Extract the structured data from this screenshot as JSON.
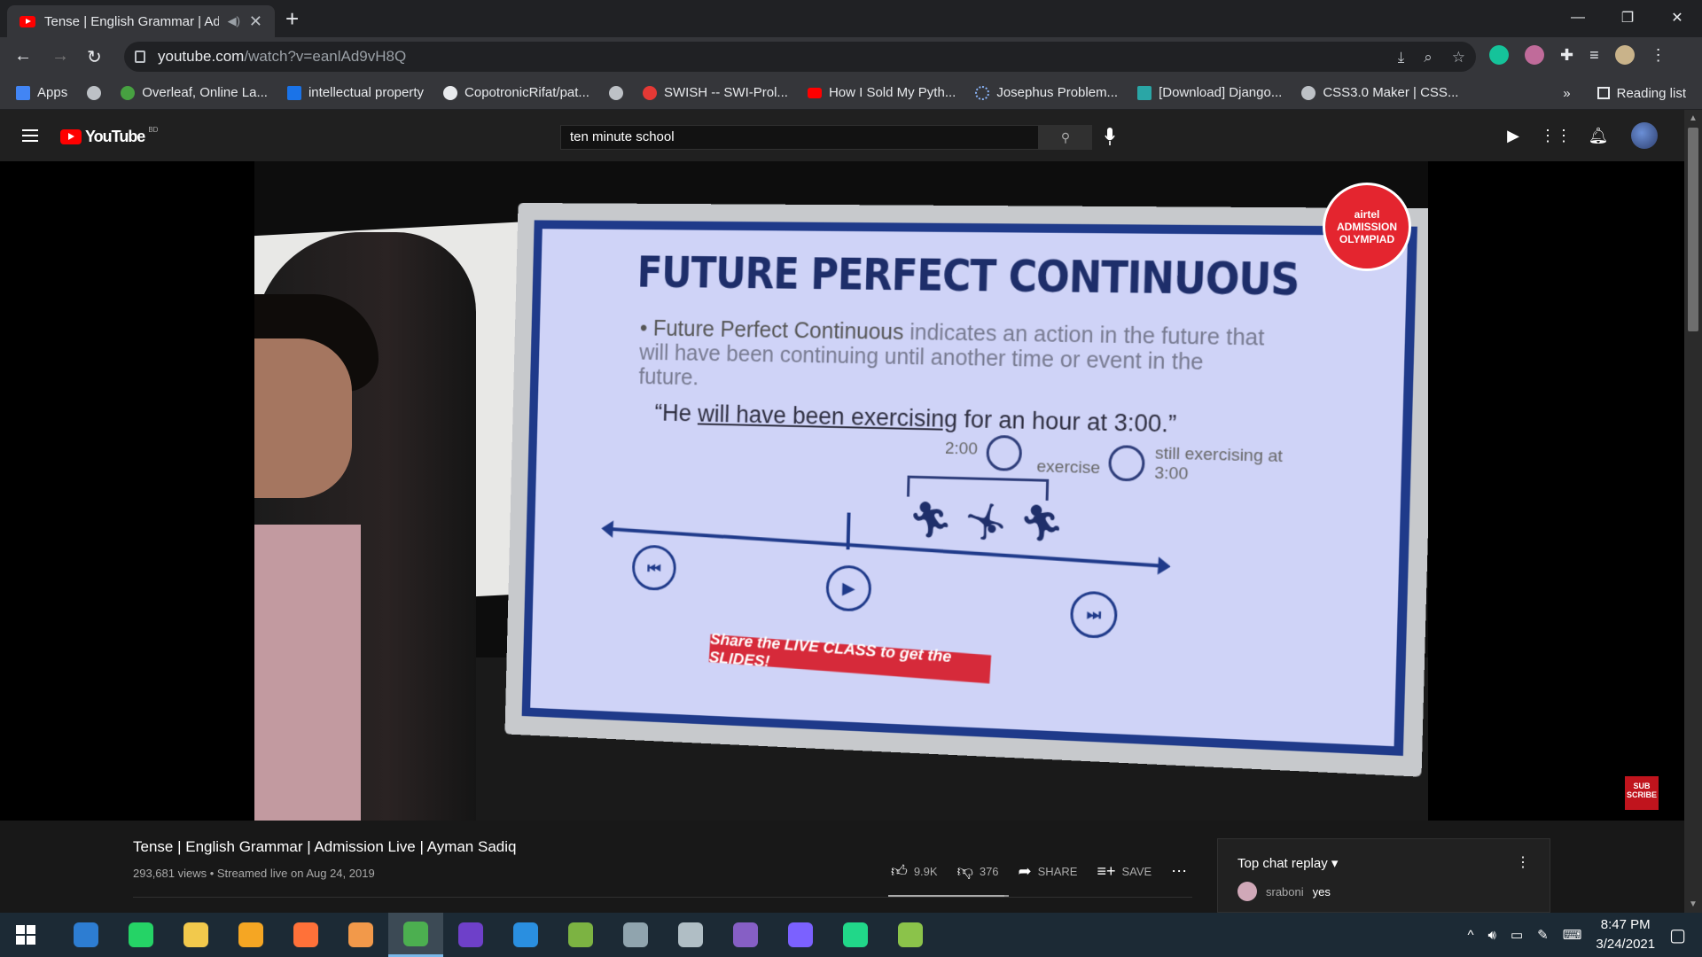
{
  "browser": {
    "tab_title": "Tense | English Grammar | Ad",
    "url_main": "youtube.com",
    "url_path": "/watch?v=eanlAd9vH8Q",
    "window_controls": [
      "—",
      "❐",
      "✕"
    ]
  },
  "bookmarks": {
    "items": [
      {
        "label": "Apps",
        "icon": "apps-grid-icon",
        "color": "#4285f4"
      },
      {
        "label": "",
        "icon": "globe-icon",
        "color": "#bdc1c6"
      },
      {
        "label": "Overleaf, Online La...",
        "icon": "overleaf-icon",
        "color": "#47a141"
      },
      {
        "label": "intellectual property",
        "icon": "scribd-icon",
        "color": "#1a73e8"
      },
      {
        "label": "CopotronicRifat/pat...",
        "icon": "github-icon",
        "color": "#e8eaed"
      },
      {
        "label": "",
        "icon": "globe-icon",
        "color": "#bdc1c6"
      },
      {
        "label": "SWISH -- SWI-Prol...",
        "icon": "swish-icon",
        "color": "#e53935"
      },
      {
        "label": "How I Sold My Pyth...",
        "icon": "youtube-icon",
        "color": "#ff0000"
      },
      {
        "label": "Josephus Problem...",
        "icon": "loading-icon",
        "color": "#8ab4f8"
      },
      {
        "label": "[Download] Django...",
        "icon": "django-icon",
        "color": "#2aa6a6"
      },
      {
        "label": "CSS3.0 Maker | CSS...",
        "icon": "globe-icon",
        "color": "#bdc1c6"
      }
    ],
    "overflow": "»",
    "reading_list": "Reading list"
  },
  "youtube": {
    "logo_text": "YouTube",
    "country_code": "BD",
    "search_value": "ten minute school"
  },
  "slide": {
    "title": "FUTURE PERFECT CONTINUOUS",
    "bullet_lead": "• Future Perfect Continuous",
    "bullet_rest": " indicates an action in the future that will have been continuing until another time or event in the future.",
    "quote_start": "“He ",
    "quote_underlined": "will have been exercising",
    "quote_end": " for an hour at 3:00.”",
    "time_start": "2:00",
    "exercise": "exercise",
    "still": "still exercising at 3:00",
    "banner": "Share the LIVE CLASS to get the SLIDES!",
    "badge_brand": "airtel",
    "badge_line1": "ADMISSION",
    "badge_line2": "OLYMPIAD"
  },
  "subscribe": "SUB SCRIBE",
  "video": {
    "title": "Tense | English Grammar | Admission Live | Ayman Sadiq",
    "meta": "293,681 views • Streamed live on Aug 24, 2019",
    "likes": "9.9K",
    "dislikes": "376",
    "share": "SHARE",
    "save": "SAVE",
    "like_ratio": 0.96
  },
  "chat": {
    "header": "Top chat replay",
    "messages": [
      {
        "author": "sraboni",
        "text": "yes"
      }
    ]
  },
  "taskbar": {
    "time": "8:47 PM",
    "date": "3/24/2021",
    "apps": [
      {
        "name": "taskbar-app-1",
        "color": "#2d7dd2"
      },
      {
        "name": "taskbar-whatsapp",
        "color": "#25d366"
      },
      {
        "name": "taskbar-file-explorer",
        "color": "#f2c94c"
      },
      {
        "name": "taskbar-app-4",
        "color": "#f5a623"
      },
      {
        "name": "taskbar-firefox",
        "color": "#ff7139"
      },
      {
        "name": "taskbar-app-6",
        "color": "#f2994a"
      },
      {
        "name": "taskbar-chrome",
        "color": "#4caf50"
      },
      {
        "name": "taskbar-github-desktop",
        "color": "#6e40c9"
      },
      {
        "name": "taskbar-vscode",
        "color": "#2a8fe0"
      },
      {
        "name": "taskbar-app-10",
        "color": "#7cb342"
      },
      {
        "name": "taskbar-app-11",
        "color": "#90a4ae"
      },
      {
        "name": "taskbar-app-12",
        "color": "#b0bec5"
      },
      {
        "name": "taskbar-visual-studio",
        "color": "#865fc5"
      },
      {
        "name": "taskbar-messenger",
        "color": "#7b61ff"
      },
      {
        "name": "taskbar-pycharm",
        "color": "#21d789"
      },
      {
        "name": "taskbar-app-16",
        "color": "#8bc34a"
      }
    ]
  }
}
